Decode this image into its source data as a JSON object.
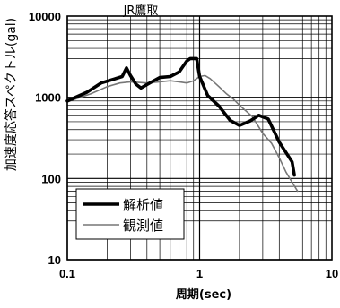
{
  "chart_data": {
    "type": "line",
    "title": "JR鷹取",
    "xlabel": "周期(sec)",
    "ylabel": "加速度応答スペクトル(gal)",
    "x_scale": "log",
    "y_scale": "log",
    "xlim": [
      0.1,
      10
    ],
    "ylim": [
      10,
      10000
    ],
    "x_ticks": [
      {
        "value": 0.1,
        "label": "0.1"
      },
      {
        "value": 1,
        "label": "1"
      },
      {
        "value": 10,
        "label": "10"
      }
    ],
    "y_ticks": [
      {
        "value": 10,
        "label": "10"
      },
      {
        "value": 100,
        "label": "100"
      },
      {
        "value": 1000,
        "label": "1000"
      },
      {
        "value": 10000,
        "label": "10000"
      }
    ],
    "grid": true,
    "legend_position": "bottom-left",
    "series": [
      {
        "name": "解析値",
        "style": "thick-solid",
        "color": "#000000",
        "points": [
          [
            0.1,
            900
          ],
          [
            0.14,
            1150
          ],
          [
            0.18,
            1500
          ],
          [
            0.22,
            1650
          ],
          [
            0.26,
            1800
          ],
          [
            0.28,
            2300
          ],
          [
            0.3,
            1850
          ],
          [
            0.33,
            1450
          ],
          [
            0.36,
            1300
          ],
          [
            0.42,
            1500
          ],
          [
            0.5,
            1750
          ],
          [
            0.6,
            1800
          ],
          [
            0.7,
            2050
          ],
          [
            0.8,
            2800
          ],
          [
            0.85,
            3000
          ],
          [
            0.95,
            3000
          ],
          [
            1.0,
            1800
          ],
          [
            1.15,
            1050
          ],
          [
            1.4,
            780
          ],
          [
            1.7,
            520
          ],
          [
            2.0,
            450
          ],
          [
            2.4,
            510
          ],
          [
            2.8,
            600
          ],
          [
            3.3,
            540
          ],
          [
            4.0,
            280
          ],
          [
            5.0,
            160
          ],
          [
            5.2,
            110
          ]
        ]
      },
      {
        "name": "観測値",
        "style": "thin-gray",
        "color": "#777777",
        "points": [
          [
            0.1,
            880
          ],
          [
            0.15,
            1100
          ],
          [
            0.2,
            1350
          ],
          [
            0.25,
            1500
          ],
          [
            0.3,
            1550
          ],
          [
            0.4,
            1500
          ],
          [
            0.5,
            1550
          ],
          [
            0.6,
            1600
          ],
          [
            0.7,
            1550
          ],
          [
            0.8,
            1500
          ],
          [
            0.9,
            1600
          ],
          [
            1.0,
            1800
          ],
          [
            1.1,
            1850
          ],
          [
            1.2,
            1700
          ],
          [
            1.4,
            1350
          ],
          [
            1.6,
            1100
          ],
          [
            1.8,
            950
          ],
          [
            2.0,
            800
          ],
          [
            2.5,
            580
          ],
          [
            3.0,
            360
          ],
          [
            3.5,
            270
          ],
          [
            4.0,
            180
          ],
          [
            4.5,
            120
          ],
          [
            5.0,
            90
          ],
          [
            5.5,
            70
          ]
        ]
      }
    ]
  }
}
